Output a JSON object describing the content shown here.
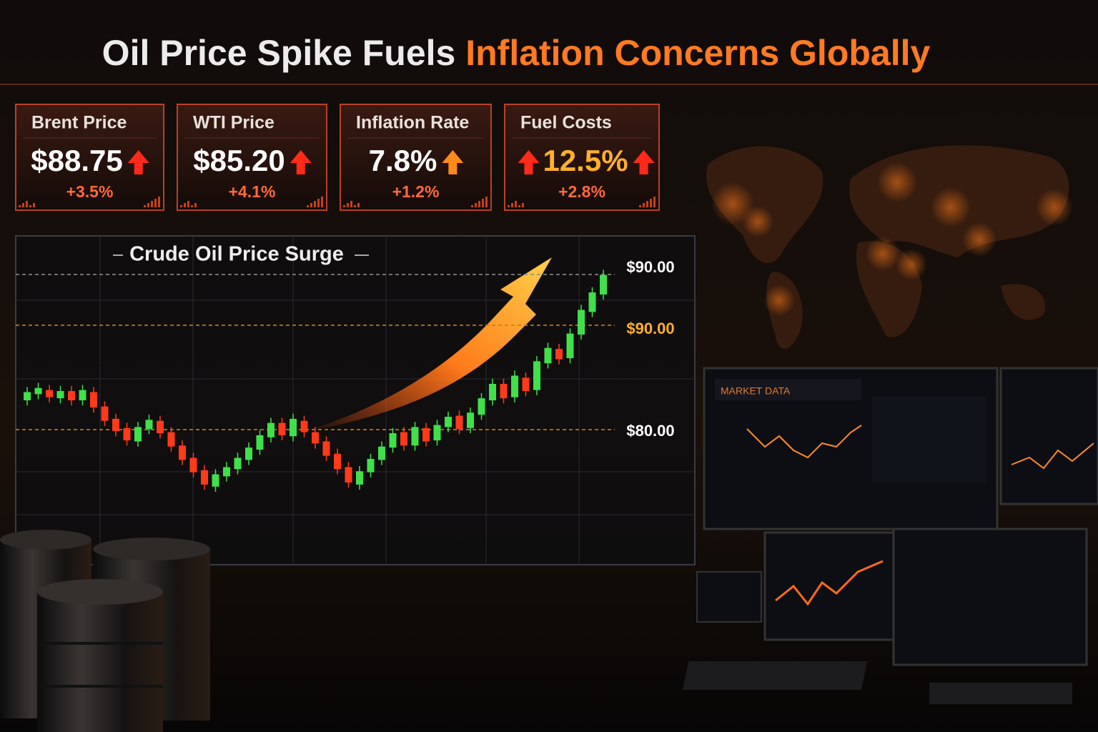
{
  "header": {
    "title_part1": "Oil Price Spike Fuels",
    "title_part2": "Inflation Concerns Globally"
  },
  "kpis": [
    {
      "label": "Brent Price",
      "value": "$88.75",
      "change": "+3.5%"
    },
    {
      "label": "WTI Price",
      "value": "$85.20",
      "change": "+4.1%"
    },
    {
      "label": "Inflation Rate",
      "value": "7.8%",
      "change": "+1.2%"
    },
    {
      "label": "Fuel Costs",
      "value": "12.5%",
      "change": "+2.8%"
    }
  ],
  "chart_data": {
    "type": "candlestick",
    "title": "Crude Oil Price Surge",
    "price_labels": [
      "$90.00",
      "$90.00",
      "$80.00"
    ],
    "ylim": [
      67,
      99
    ],
    "up_color": "#3fe04a",
    "down_color": "#ff3a1a",
    "open": [
      83.0,
      83.6,
      84.0,
      83.2,
      83.9,
      83.0,
      83.8,
      82.4,
      81.2,
      80.3,
      79.0,
      80.2,
      81.0,
      79.9,
      78.6,
      77.4,
      76.2,
      74.6,
      75.6,
      76.3,
      77.2,
      78.2,
      79.4,
      80.8,
      79.5,
      81.0,
      79.9,
      79.0,
      77.8,
      76.5,
      74.8,
      76.0,
      77.2,
      78.4,
      79.9,
      78.6,
      80.3,
      79.1,
      80.4,
      81.5,
      80.3,
      81.6,
      83.0,
      84.6,
      83.3,
      85.2,
      84.0,
      86.6,
      88.0,
      87.1,
      89.4,
      91.6,
      93.3
    ],
    "high": [
      84.3,
      84.7,
      84.5,
      84.4,
      84.4,
      84.5,
      84.3,
      82.9,
      81.7,
      80.8,
      80.9,
      81.6,
      81.5,
      80.4,
      79.1,
      77.9,
      76.7,
      76.3,
      77.0,
      77.9,
      78.9,
      80.1,
      81.3,
      81.3,
      81.7,
      81.5,
      80.4,
      79.5,
      78.3,
      77.0,
      76.6,
      77.8,
      79.0,
      80.3,
      80.4,
      80.9,
      80.8,
      81.1,
      81.9,
      82.0,
      82.3,
      83.7,
      85.1,
      85.1,
      85.9,
      85.7,
      87.3,
      88.6,
      88.5,
      90.0,
      92.3,
      94.0,
      95.7
    ],
    "low": [
      82.5,
      83.1,
      82.8,
      82.7,
      82.5,
      82.5,
      81.8,
      80.5,
      79.5,
      78.6,
      78.5,
      79.7,
      79.3,
      78.0,
      76.7,
      75.5,
      74.3,
      74.1,
      75.1,
      75.8,
      76.7,
      77.7,
      78.9,
      79.1,
      79.0,
      79.4,
      78.3,
      77.1,
      75.8,
      74.5,
      74.3,
      75.5,
      76.7,
      77.9,
      78.1,
      78.1,
      78.5,
      78.6,
      79.9,
      79.7,
      79.8,
      81.1,
      82.5,
      82.7,
      82.8,
      83.4,
      83.5,
      86.1,
      86.5,
      86.6,
      88.9,
      91.1,
      92.8
    ],
    "close": [
      83.8,
      84.2,
      83.3,
      83.9,
      83.0,
      84.0,
      82.3,
      81.0,
      80.0,
      79.1,
      80.4,
      81.1,
      79.8,
      78.5,
      77.2,
      76.0,
      74.8,
      75.8,
      76.5,
      77.4,
      78.4,
      79.6,
      80.8,
      79.6,
      81.2,
      79.9,
      78.8,
      77.6,
      76.3,
      75.0,
      76.1,
      77.3,
      78.5,
      79.8,
      78.6,
      80.4,
      79.0,
      80.6,
      81.4,
      80.2,
      81.8,
      83.2,
      84.6,
      83.2,
      85.4,
      83.9,
      86.8,
      88.1,
      87.0,
      89.5,
      91.8,
      93.5,
      95.2
    ]
  },
  "market_panel": {
    "title": "MARKET DATA"
  }
}
